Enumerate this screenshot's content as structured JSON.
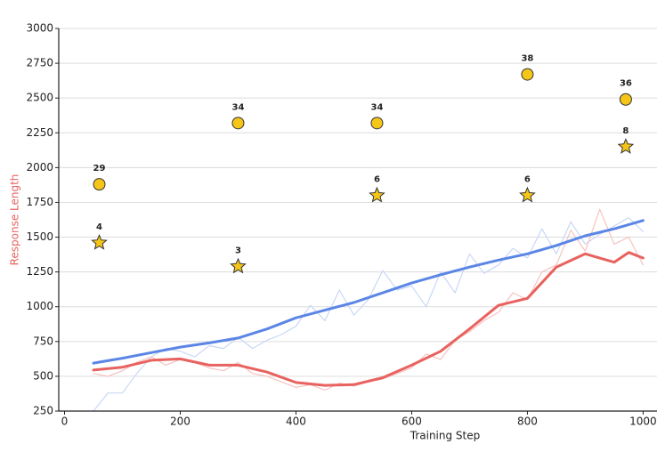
{
  "chart_data": {
    "type": "line",
    "xlabel": "Training Step",
    "ylabel": "Response Length",
    "xlim": [
      -10,
      1024
    ],
    "ylim": [
      250,
      3000
    ],
    "xticks": [
      0,
      200,
      400,
      600,
      800,
      1000
    ],
    "yticks": [
      250,
      500,
      750,
      1000,
      1250,
      1500,
      1750,
      2000,
      2250,
      2500,
      2750,
      3000
    ],
    "grid": true,
    "series": [
      {
        "color": "#c9d7f7",
        "width": 1.2,
        "x": [
          50,
          75,
          100,
          125,
          150,
          175,
          200,
          225,
          250,
          275,
          300,
          325,
          350,
          375,
          400,
          425,
          450,
          475,
          500,
          525,
          550,
          575,
          600,
          625,
          650,
          675,
          700,
          725,
          750,
          775,
          800,
          825,
          850,
          875,
          900,
          925,
          950,
          975,
          1000
        ],
        "values": [
          250,
          380,
          380,
          520,
          640,
          700,
          680,
          640,
          720,
          700,
          780,
          700,
          760,
          800,
          860,
          1010,
          900,
          1120,
          940,
          1050,
          1260,
          1120,
          1150,
          1000,
          1250,
          1100,
          1380,
          1240,
          1300,
          1420,
          1350,
          1560,
          1380,
          1610,
          1450,
          1520,
          1580,
          1640,
          1540
        ]
      },
      {
        "color": "#f6c3c1",
        "width": 1.2,
        "x": [
          50,
          75,
          100,
          125,
          150,
          175,
          200,
          225,
          250,
          275,
          300,
          325,
          350,
          375,
          400,
          425,
          450,
          475,
          500,
          525,
          550,
          575,
          600,
          625,
          650,
          675,
          700,
          725,
          750,
          775,
          800,
          825,
          850,
          875,
          900,
          925,
          950,
          975,
          1000
        ],
        "values": [
          520,
          500,
          540,
          600,
          640,
          580,
          620,
          600,
          560,
          540,
          600,
          520,
          500,
          460,
          420,
          440,
          400,
          450,
          430,
          460,
          480,
          520,
          560,
          660,
          620,
          760,
          820,
          900,
          960,
          1100,
          1050,
          1250,
          1300,
          1550,
          1400,
          1700,
          1450,
          1500,
          1300
        ]
      },
      {
        "color": "#5b86e5",
        "width": 3,
        "x": [
          50,
          100,
          150,
          200,
          250,
          300,
          350,
          400,
          450,
          500,
          550,
          600,
          650,
          700,
          750,
          800,
          850,
          900,
          950,
          1000
        ],
        "values": [
          595,
          630,
          670,
          710,
          740,
          775,
          840,
          920,
          975,
          1030,
          1100,
          1170,
          1230,
          1285,
          1335,
          1380,
          1440,
          1510,
          1560,
          1620
        ]
      },
      {
        "color": "#e8625f",
        "width": 3,
        "x": [
          50,
          100,
          150,
          200,
          250,
          300,
          350,
          400,
          450,
          500,
          550,
          600,
          650,
          700,
          750,
          800,
          850,
          900,
          950,
          975,
          1000
        ],
        "values": [
          545,
          565,
          615,
          625,
          580,
          580,
          530,
          455,
          435,
          440,
          490,
          580,
          680,
          840,
          1010,
          1060,
          1285,
          1380,
          1320,
          1390,
          1350
        ]
      },
      {
        "marker": "circle",
        "color": "#f5c518",
        "x": [
          60,
          300,
          540,
          800,
          970
        ],
        "values": [
          1880,
          2320,
          2320,
          2670,
          2490
        ],
        "point_labels": [
          29,
          34,
          34,
          38,
          36
        ]
      },
      {
        "marker": "star",
        "color": "#f5c518",
        "x": [
          60,
          300,
          540,
          800,
          970
        ],
        "values": [
          1460,
          1290,
          1800,
          1800,
          2150
        ],
        "point_labels": [
          4,
          3,
          6,
          6,
          8
        ]
      }
    ]
  }
}
